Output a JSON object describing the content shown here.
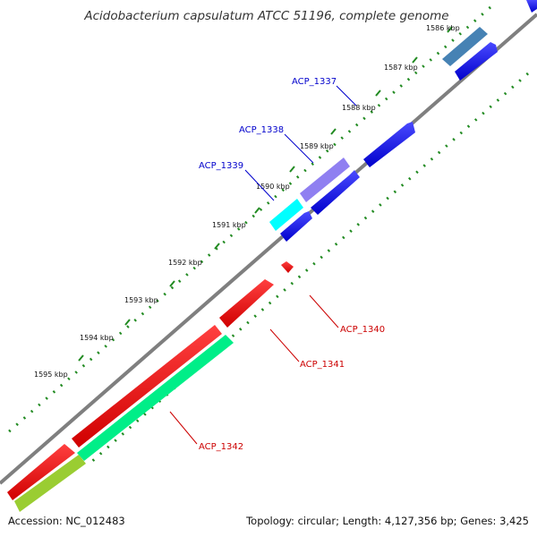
{
  "title": "Acidobacterium capsulatum ATCC 51196, complete genome",
  "footer": {
    "accession": "Accession: NC_012483",
    "info": "Topology: circular; Length: 4,127,356 bp; Genes: 3,425"
  },
  "ruler_labels": [
    "1586 kbp",
    "1587 kbp",
    "1588 kbp",
    "1589 kbp",
    "1590 kbp",
    "1591 kbp",
    "1592 kbp",
    "1593 kbp",
    "1594 kbp",
    "1595 kbp"
  ],
  "genes": [
    {
      "label": "ACP_1337",
      "color": "#0000cc"
    },
    {
      "label": "ACP_1338",
      "color": "#0000cc"
    },
    {
      "label": "ACP_1339",
      "color": "#0000cc"
    },
    {
      "label": "ACP_1340",
      "color": "#cc0000"
    },
    {
      "label": "ACP_1341",
      "color": "#cc0000"
    },
    {
      "label": "ACP_1342",
      "color": "#cc0000"
    }
  ],
  "colors": {
    "backbone": "#888888",
    "tick": "#228b22",
    "forward_gene": "#0000ee",
    "reverse_gene": "#ee0000"
  }
}
